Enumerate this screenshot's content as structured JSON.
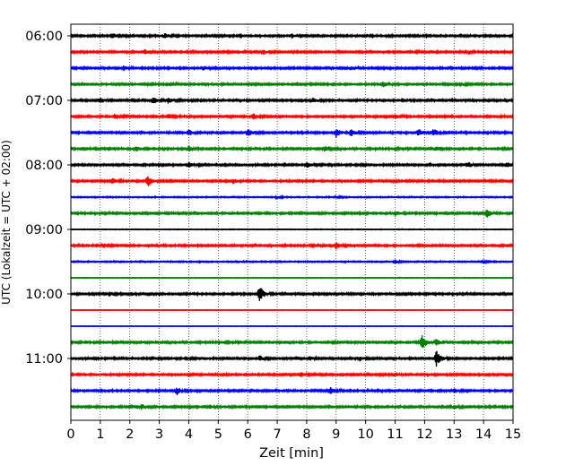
{
  "chart_data": {
    "type": "line",
    "xlabel": "Zeit  [min]",
    "ylabel": "UTC (Lokalzeit = UTC + 02:00)",
    "xlim": [
      0,
      15
    ],
    "x_ticks": [
      "0",
      "1",
      "2",
      "3",
      "4",
      "5",
      "6",
      "7",
      "8",
      "9",
      "10",
      "11",
      "12",
      "13",
      "14",
      "15"
    ],
    "y_tick_labels": [
      "06:00",
      "07:00",
      "08:00",
      "09:00",
      "10:00",
      "11:00"
    ],
    "trace_interval_minutes": 15,
    "start_time": "06:00",
    "trace_count": 24,
    "trace_colors": [
      "#000000",
      "#ff0000",
      "#0000ff",
      "#008000"
    ],
    "grid": "vertical dotted at each minute",
    "legend": "none"
  }
}
